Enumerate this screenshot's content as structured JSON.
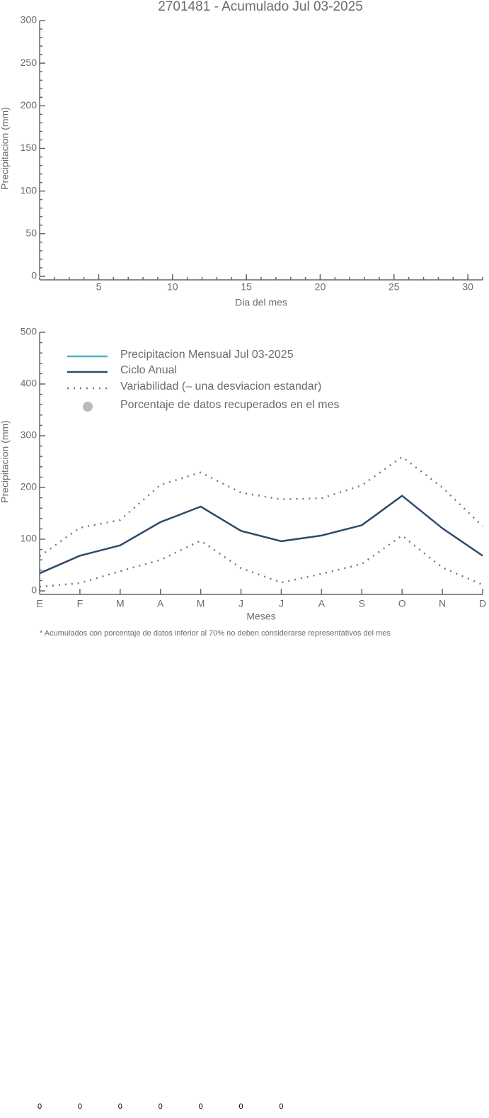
{
  "chart_data": [
    {
      "type": "line",
      "title": "2701481 - Acumulado Jul 03-2025",
      "y_label": "Precipitacion (mm)",
      "x_label": "Dia del mes",
      "xlim": [
        1,
        31
      ],
      "xticks": [
        5,
        10,
        15,
        20,
        25,
        30
      ],
      "ylim": [
        0,
        300
      ],
      "yticks": [
        0,
        50,
        100,
        150,
        200,
        250,
        300
      ],
      "series": []
    },
    {
      "type": "line",
      "y_label": "Precipitacion (mm)",
      "x_label": "Meses",
      "footnote": "* Acumulados con porcentaje de datos inferior al 70% no deben considerarse representativos del mes",
      "categories": [
        "E",
        "F",
        "M",
        "A",
        "M",
        "J",
        "J",
        "A",
        "S",
        "O",
        "N",
        "D"
      ],
      "ylim": [
        0,
        500
      ],
      "yticks": [
        0,
        100,
        200,
        300,
        400,
        500
      ],
      "legend": "upper left",
      "series": [
        {
          "name": "Precipitacion Mensual Jul 03-2025",
          "color": "#4ab5c9",
          "style": "solid",
          "values": [
            null,
            null,
            null,
            null,
            null,
            null,
            null,
            null,
            null,
            null,
            null,
            null
          ]
        },
        {
          "name": "Ciclo Anual",
          "color": "#2e4a6b",
          "style": "solid",
          "values": [
            34,
            68,
            88,
            133,
            163,
            116,
            96,
            107,
            127,
            184,
            121,
            68
          ]
        },
        {
          "name": "Variabilidad (– una desviacion estandar)",
          "color": "#777777",
          "style": "dotted",
          "upper": [
            67,
            122,
            137,
            205,
            229,
            190,
            177,
            179,
            204,
            259,
            200,
            125
          ],
          "lower": [
            8,
            15,
            38,
            60,
            97,
            44,
            16,
            33,
            52,
            107,
            45,
            12
          ]
        },
        {
          "name": "Porcentaje de datos recuperados en el mes",
          "color": "#bbbbbb",
          "style": "dot",
          "values": [
            0,
            0,
            0,
            0,
            0,
            0,
            0,
            null,
            null,
            null,
            null,
            null
          ]
        }
      ]
    }
  ]
}
